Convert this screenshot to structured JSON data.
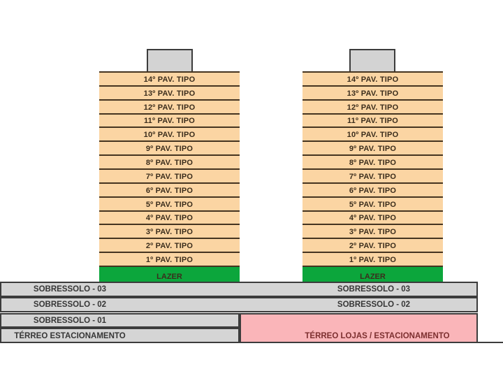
{
  "colors": {
    "floor_fill": "#FBD5A3",
    "floor_line": "#453420",
    "floor_text": "#3B2D1C",
    "lazer_fill": "#0CA63C",
    "roof_fill": "#D3D3D3",
    "grey_fill": "#D5D5D5",
    "grey_text": "#363636",
    "border_dark": "#3C3C3C",
    "pink_fill": "#FAB5B9",
    "pink_text": "#7C2F2F"
  },
  "towers": [
    {
      "floors": [
        "14º PAV. TIPO",
        "13º PAV. TIPO",
        "12º PAV. TIPO",
        "11º PAV. TIPO",
        "10º PAV. TIPO",
        "9º PAV. TIPO",
        "8º PAV. TIPO",
        "7º PAV. TIPO",
        "6º PAV. TIPO",
        "5º PAV. TIPO",
        "4º PAV. TIPO",
        "3º PAV. TIPO",
        "2º PAV. TIPO",
        "1º PAV. TIPO"
      ],
      "ground": "LAZER"
    },
    {
      "floors": [
        "14º PAV. TIPO",
        "13º PAV. TIPO",
        "12º PAV. TIPO",
        "11º PAV. TIPO",
        "10º PAV. TIPO",
        "9º PAV. TIPO",
        "8º PAV. TIPO",
        "7º PAV. TIPO",
        "6º PAV. TIPO",
        "5º PAV. TIPO",
        "4º PAV. TIPO",
        "3º PAV. TIPO",
        "2º PAV. TIPO",
        "1º PAV. TIPO"
      ],
      "ground": "LAZER"
    }
  ],
  "basement": {
    "sobressolo3_left": "SOBRESSOLO - 03",
    "sobressolo3_right": "SOBRESSOLO - 03",
    "sobressolo2_left": "SOBRESSOLO - 02",
    "sobressolo2_right": "SOBRESSOLO - 02",
    "sobressolo1": "SOBRESSOLO - 01",
    "terreo_estacionamento": "TÉRREO ESTACIONAMENTO",
    "terreo_lojas": "TÉRREO LOJAS / ESTACIONAMENTO"
  }
}
